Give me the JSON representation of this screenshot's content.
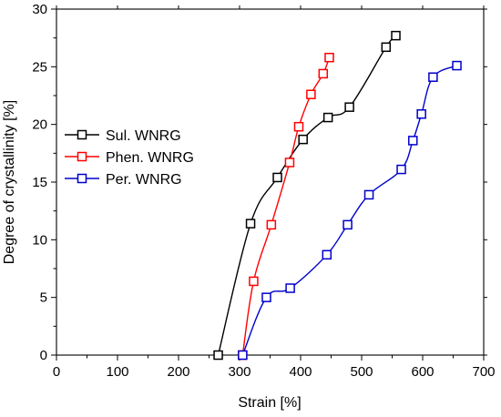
{
  "chart_data": {
    "type": "line",
    "title": "",
    "xlabel": "Strain [%]",
    "ylabel": "Degree of crystallinity [%]",
    "xlim": [
      0,
      700
    ],
    "ylim": [
      0,
      30
    ],
    "xticks": [
      0,
      100,
      200,
      300,
      400,
      500,
      600,
      700
    ],
    "yticks": [
      0,
      5,
      10,
      15,
      20,
      25,
      30
    ],
    "xtick_labels": [
      "0",
      "100",
      "200",
      "300",
      "400",
      "500",
      "600",
      "700"
    ],
    "ytick_labels": [
      "0",
      "5",
      "10",
      "15",
      "20",
      "25",
      "30"
    ],
    "grid": false,
    "legend_position": "left",
    "series": [
      {
        "name": "Sul. WNRG",
        "color": "#000000",
        "marker": "open-square",
        "x": [
          265,
          318,
          362,
          404,
          445,
          480,
          540,
          556
        ],
        "y": [
          0.0,
          11.4,
          15.4,
          18.7,
          20.6,
          21.5,
          26.7,
          27.7
        ]
      },
      {
        "name": "Phen. WNRG",
        "color": "#ff0000",
        "marker": "open-square",
        "x": [
          305,
          323,
          352,
          382,
          397,
          417,
          437,
          447
        ],
        "y": [
          0.0,
          6.4,
          11.3,
          16.7,
          19.8,
          22.6,
          24.4,
          25.8
        ]
      },
      {
        "name": "Per. WNRG",
        "color": "#0000cc",
        "marker": "open-square",
        "x": [
          305,
          344,
          383,
          443,
          477,
          512,
          565,
          584,
          598,
          617,
          656
        ],
        "y": [
          0.0,
          5.0,
          5.8,
          8.7,
          11.3,
          13.9,
          16.1,
          18.6,
          20.9,
          24.1,
          25.1
        ]
      }
    ]
  }
}
